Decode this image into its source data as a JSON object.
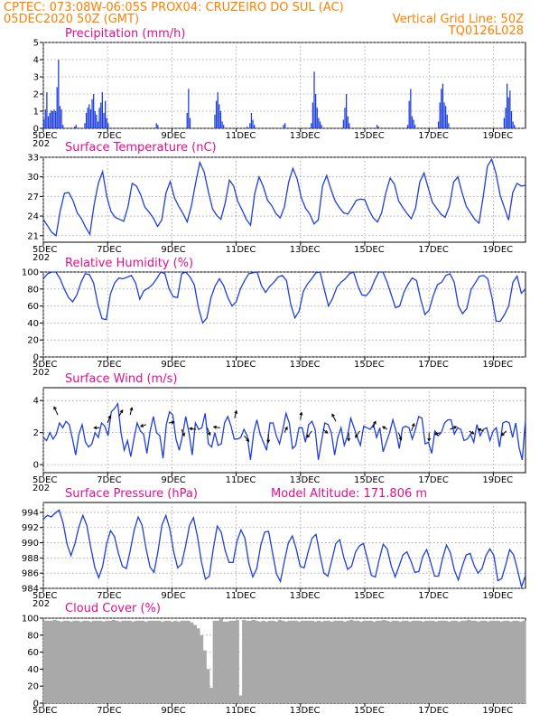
{
  "header": {
    "line1_left": "CPTEC:   073:08W-06:05S   PROX04: CRUZEIRO DO SUL (AC)",
    "line2_left": "05DEC2020 50Z (GMT)",
    "line2_right": "Vertical Grid Line: 50Z",
    "line3_right": "TQ0126L028"
  },
  "colors": {
    "header": "#ff8000",
    "title": "#e0108c",
    "series": "#1f3fdd",
    "cloud": "#a9a9a9",
    "grid": "#9a9a9a"
  },
  "x_axis": {
    "tick_labels": [
      "5DEC",
      "7DEC",
      "9DEC",
      "11DEC",
      "13DEC",
      "15DEC",
      "17DEC",
      "19DEC"
    ],
    "tick_days": [
      0,
      2,
      4,
      6,
      8,
      10,
      12,
      14
    ],
    "range_days": [
      0,
      15
    ],
    "year_stub": "202"
  },
  "chart_data": [
    {
      "id": "precip",
      "type": "bar",
      "title": "Precipitation (mm/h)",
      "ylim": [
        0,
        5
      ],
      "yticks": [
        0,
        1,
        2,
        3,
        4,
        5
      ],
      "days": [
        [
          0.55,
          1.1,
          2.1,
          0.7,
          0.9,
          1.05,
          1.0,
          1.1,
          1.0,
          2.4,
          4.0,
          1.3,
          1.1,
          0.2,
          0,
          0,
          0,
          0,
          0,
          0,
          0,
          0.1
        ],
        [
          0.2,
          0,
          0,
          0,
          0,
          0,
          0.3,
          0.9,
          1.2,
          1.4,
          1.1,
          1.7,
          2.0,
          1.0,
          0.8,
          0.4,
          1.2,
          1.5,
          2.1,
          0.9,
          1.6,
          0.6
        ],
        [
          0.3,
          0,
          0,
          0,
          0,
          0,
          0,
          0,
          0,
          0,
          0,
          0,
          0,
          0,
          0,
          0,
          0,
          0,
          0,
          0,
          0,
          0
        ],
        [
          0,
          0,
          0,
          0,
          0,
          0,
          0,
          0,
          0,
          0,
          0,
          0.3,
          0.2,
          0,
          0,
          0,
          0,
          0,
          0,
          0,
          0,
          0
        ],
        [
          0,
          0,
          0,
          0,
          0,
          0,
          0,
          0,
          0,
          0,
          0.9,
          2.3,
          0.6,
          0,
          0,
          0,
          0,
          0,
          0,
          0,
          0,
          0
        ],
        [
          0,
          0,
          0,
          0,
          0,
          0,
          0,
          0.8,
          1.6,
          2.1,
          1.4,
          1.0,
          0.4,
          0.2,
          0,
          0,
          0,
          0,
          0,
          0,
          0,
          0
        ],
        [
          0,
          0,
          0,
          0,
          0,
          0,
          0,
          0.1,
          0,
          0.3,
          0.9,
          0.5,
          0.2,
          0,
          0,
          0,
          0,
          0,
          0,
          0,
          0,
          0
        ],
        [
          0,
          0,
          0,
          0,
          0,
          0,
          0,
          0,
          0,
          0,
          0.2,
          0.3,
          0,
          0,
          0,
          0,
          0,
          0,
          0,
          0,
          0,
          0
        ],
        [
          0,
          0,
          0,
          0,
          0,
          0,
          0,
          0.3,
          1.5,
          3.3,
          2.0,
          1.2,
          0.6,
          0.4,
          0.2,
          0,
          0,
          0,
          0,
          0,
          0,
          0
        ],
        [
          0,
          0,
          0,
          0,
          0,
          0,
          0,
          0.5,
          1.2,
          2.0,
          0.7,
          0.3,
          0,
          0,
          0,
          0,
          0,
          0,
          0,
          0,
          0,
          0
        ],
        [
          0,
          0,
          0,
          0,
          0,
          0,
          0,
          0,
          0.2,
          0.1,
          0,
          0,
          0,
          0,
          0,
          0,
          0,
          0,
          0,
          0,
          0,
          0
        ],
        [
          0,
          0,
          0,
          0,
          0,
          0,
          0,
          0.2,
          1.6,
          2.3,
          0.7,
          0.5,
          0.2,
          0,
          0,
          0,
          0,
          0,
          0,
          0,
          0,
          0
        ],
        [
          0,
          0,
          0,
          0,
          0,
          0,
          0.4,
          1.5,
          2.3,
          2.6,
          1.5,
          1.3,
          0.8,
          0.3,
          0,
          0,
          0,
          0,
          0,
          0,
          0,
          0
        ],
        [
          0,
          0,
          0,
          0,
          0,
          0,
          0,
          0,
          0,
          0,
          0,
          0,
          0,
          0,
          0,
          0,
          0,
          0,
          0,
          0,
          0,
          0
        ],
        [
          0,
          0,
          0,
          0,
          0,
          0,
          0,
          0.6,
          1.2,
          2.6,
          1.8,
          2.2,
          1.0,
          0.4,
          0.2,
          0,
          0,
          0,
          0,
          0,
          0,
          0
        ]
      ]
    },
    {
      "id": "temp",
      "type": "line",
      "title": "Surface Temperature (nC)",
      "ylim": [
        20,
        33
      ],
      "yticks": [
        21,
        24,
        27,
        30,
        33
      ],
      "values": [
        23.5,
        22.5,
        21.5,
        21.0,
        24.8,
        27.5,
        27.6,
        26.4,
        24.5,
        23.6,
        22.3,
        21.2,
        25.7,
        29.0,
        30.8,
        27.0,
        24.7,
        23.8,
        23.5,
        23.2,
        25.4,
        29.0,
        28.6,
        27.3,
        25.4,
        24.6,
        23.7,
        22.4,
        23.4,
        27.5,
        29.3,
        26.8,
        25.5,
        24.4,
        23.1,
        25.5,
        29.0,
        32.2,
        30.8,
        27.8,
        25.1,
        24.1,
        23.5,
        26.0,
        29.5,
        28.6,
        26.2,
        24.9,
        23.5,
        22.6,
        27.5,
        30.0,
        28.5,
        26.4,
        25.6,
        24.4,
        23.7,
        25.4,
        29.2,
        31.3,
        29.7,
        26.8,
        25.2,
        24.3,
        22.8,
        23.4,
        28.6,
        30.2,
        28.1,
        26.3,
        25.3,
        24.5,
        24.3,
        25.3,
        26.4,
        26.6,
        26.5,
        24.9,
        23.7,
        23.1,
        24.5,
        27.6,
        29.8,
        28.9,
        26.3,
        25.3,
        24.4,
        23.6,
        25.2,
        29.2,
        30.6,
        28.3,
        26.1,
        25.2,
        24.3,
        23.8,
        25.5,
        29.2,
        30.0,
        27.6,
        25.5,
        24.5,
        23.5,
        22.9,
        27.0,
        31.6,
        32.7,
        30.6,
        27.2,
        25.3,
        23.4,
        27.6,
        29.0,
        28.6,
        28.7
      ]
    },
    {
      "id": "rh",
      "type": "line",
      "title": "Relative Humidity (%)",
      "ylim": [
        0,
        100
      ],
      "yticks": [
        0,
        20,
        40,
        60,
        80,
        100
      ],
      "values": [
        92,
        98,
        100,
        100,
        92,
        80,
        70,
        65,
        73,
        88,
        98,
        97,
        87,
        62,
        45,
        44,
        74,
        87,
        93,
        92,
        94,
        96,
        87,
        68,
        78,
        81,
        85,
        92,
        100,
        98,
        80,
        71,
        70,
        98,
        100,
        94,
        85,
        58,
        40,
        46,
        70,
        84,
        92,
        84,
        70,
        60,
        65,
        80,
        90,
        98,
        99,
        100,
        84,
        76,
        83,
        88,
        94,
        96,
        90,
        62,
        46,
        54,
        77,
        86,
        92,
        99,
        100,
        80,
        60,
        69,
        82,
        88,
        92,
        98,
        100,
        84,
        73,
        72,
        78,
        90,
        100,
        100,
        88,
        73,
        58,
        60,
        76,
        86,
        93,
        90,
        68,
        50,
        55,
        72,
        85,
        88,
        96,
        98,
        88,
        60,
        51,
        57,
        79,
        87,
        95,
        96,
        92,
        70,
        42,
        42,
        50,
        60,
        88,
        95,
        75,
        80
      ]
    },
    {
      "id": "wind",
      "type": "line",
      "title": "Surface Wind (m/s)",
      "ylim": [
        -0.5,
        4.8
      ],
      "yticks": [
        0,
        2,
        4
      ],
      "values": [
        1.7,
        1.5,
        2.0,
        1.6,
        1.9,
        2.6,
        2.3,
        2.7,
        2.5,
        1.6,
        0.6,
        1.9,
        2.5,
        1.4,
        1.1,
        1.3,
        2.0,
        1.7,
        2.6,
        2.4,
        1.8,
        3.3,
        3.5,
        3.8,
        2.0,
        0.9,
        1.5,
        0.5,
        1.6,
        2.6,
        2.1,
        1.9,
        0.7,
        2.1,
        3.0,
        2.0,
        1.8,
        0.4,
        2.5,
        3.3,
        3.1,
        1.6,
        0.9,
        1.8,
        3.0,
        2.0,
        0.6,
        2.6,
        2.2,
        2.3,
        3.2,
        1.3,
        1.1,
        2.0,
        1.2,
        1.3,
        2.6,
        3.0,
        2.4,
        1.6,
        1.6,
        1.7,
        2.2,
        1.8,
        0.3,
        2.0,
        2.8,
        1.9,
        1.4,
        0.9,
        2.6,
        2.6,
        1.8,
        1.3,
        2.2,
        3.2,
        2.6,
        1.0,
        1.2,
        2.3,
        2.3,
        1.4,
        2.5,
        2.7,
        2.2,
        0.3,
        1.5,
        2.6,
        2.5,
        2.0,
        0.6,
        1.7,
        2.3,
        1.2,
        1.8,
        2.9,
        2.3,
        1.7,
        1.2,
        2.4,
        2.3,
        2.2,
        2.5,
        1.7,
        2.3,
        0.8,
        1.4,
        2.0,
        2.8,
        2.1,
        1.0,
        2.3,
        2.4,
        2.3,
        1.6,
        2.2,
        3.0,
        2.9,
        1.3,
        1.4,
        0.7,
        2.1,
        1.8,
        2.0,
        2.6,
        2.8,
        2.8,
        1.9,
        2.3,
        2.2,
        1.5,
        1.6,
        1.9,
        1.4,
        2.5,
        1.8,
        2.2,
        2.3,
        1.5,
        2.1,
        2.3,
        1.1,
        2.6,
        2.7,
        2.6,
        1.7,
        2.6,
        1.1,
        0.3,
        2.8
      ],
      "arrows": [
        {
          "d": 0.45,
          "y": 3.1,
          "dx": -4,
          "dy": -9
        },
        {
          "d": 1.75,
          "y": 2.3,
          "dx": -6,
          "dy": 0
        },
        {
          "d": 2.0,
          "y": 2.6,
          "dx": 3,
          "dy": -8
        },
        {
          "d": 2.35,
          "y": 3.0,
          "dx": 4,
          "dy": -7
        },
        {
          "d": 2.7,
          "y": 3.1,
          "dx": 2,
          "dy": -8
        },
        {
          "d": 3.2,
          "y": 2.5,
          "dx": -6,
          "dy": 2
        },
        {
          "d": 3.9,
          "y": 2.6,
          "dx": 6,
          "dy": -1
        },
        {
          "d": 4.3,
          "y": 2.2,
          "dx": 3,
          "dy": 7
        },
        {
          "d": 4.75,
          "y": 2.2,
          "dx": -7,
          "dy": -1
        },
        {
          "d": 5.1,
          "y": 2.3,
          "dx": 3,
          "dy": 8
        },
        {
          "d": 5.5,
          "y": 2.3,
          "dx": -7,
          "dy": -1
        },
        {
          "d": 5.95,
          "y": 2.9,
          "dx": 2,
          "dy": -8
        },
        {
          "d": 6.25,
          "y": 1.8,
          "dx": 5,
          "dy": 6
        },
        {
          "d": 7.0,
          "y": 1.9,
          "dx": 0,
          "dy": 9
        },
        {
          "d": 7.5,
          "y": 2.0,
          "dx": 3,
          "dy": -6
        },
        {
          "d": 8.0,
          "y": 2.8,
          "dx": 1,
          "dy": -8
        },
        {
          "d": 8.35,
          "y": 2.1,
          "dx": -5,
          "dy": 7
        },
        {
          "d": 8.7,
          "y": 2.2,
          "dx": 5,
          "dy": 4
        },
        {
          "d": 9.1,
          "y": 2.7,
          "dx": -4,
          "dy": -8
        },
        {
          "d": 9.5,
          "y": 2.0,
          "dx": 0,
          "dy": 9
        },
        {
          "d": 9.85,
          "y": 2.1,
          "dx": -5,
          "dy": 7
        },
        {
          "d": 10.25,
          "y": 2.3,
          "dx": 3,
          "dy": -7
        },
        {
          "d": 10.7,
          "y": 2.2,
          "dx": -5,
          "dy": -3
        },
        {
          "d": 11.05,
          "y": 2.0,
          "dx": 3,
          "dy": 8
        },
        {
          "d": 11.45,
          "y": 2.1,
          "dx": 3,
          "dy": -8
        },
        {
          "d": 12.0,
          "y": 2.0,
          "dx": 0,
          "dy": 9
        },
        {
          "d": 12.35,
          "y": 2.0,
          "dx": -6,
          "dy": 2
        },
        {
          "d": 12.65,
          "y": 2.2,
          "dx": 7,
          "dy": -3
        },
        {
          "d": 13.25,
          "y": 2.1,
          "dx": 5,
          "dy": 3
        },
        {
          "d": 13.7,
          "y": 2.1,
          "dx": -6,
          "dy": -2
        },
        {
          "d": 14.4,
          "y": 2.1,
          "dx": -5,
          "dy": 5
        }
      ]
    },
    {
      "id": "pres",
      "type": "line",
      "title": "Surface Pressure (hPa)",
      "extra": "Model Altitude: 171.806 m",
      "ylim": [
        984,
        995.3
      ],
      "yticks": [
        984,
        986,
        988,
        990,
        992,
        994
      ],
      "values": [
        993.1,
        993.6,
        993.4,
        993.9,
        994.3,
        992.6,
        989.8,
        988.3,
        989.9,
        992.1,
        993.6,
        992.3,
        989.4,
        986.8,
        985.4,
        986.9,
        989.8,
        991.6,
        990.8,
        988.6,
        986.9,
        986.6,
        989.0,
        991.7,
        993.4,
        992.3,
        989.2,
        986.8,
        986.1,
        988.8,
        992.3,
        993.6,
        991.8,
        988.8,
        986.7,
        987.2,
        989.6,
        992.3,
        993.3,
        990.8,
        987.5,
        985.2,
        985.6,
        989.2,
        992.2,
        991.4,
        989.0,
        987.4,
        987.4,
        990.2,
        991.7,
        990.6,
        987.3,
        985.5,
        986.6,
        989.6,
        991.4,
        991.5,
        988.6,
        985.9,
        984.9,
        987.6,
        990.0,
        990.9,
        989.2,
        986.9,
        986.7,
        988.8,
        990.6,
        991.1,
        988.4,
        986.0,
        985.6,
        987.7,
        989.9,
        990.4,
        988.1,
        986.5,
        986.9,
        988.8,
        989.6,
        989.9,
        987.9,
        985.7,
        985.5,
        987.8,
        989.8,
        989.2,
        987.0,
        985.5,
        986.9,
        988.4,
        988.8,
        987.6,
        986.1,
        986.2,
        988.2,
        989.1,
        987.4,
        985.6,
        985.6,
        987.9,
        989.7,
        988.7,
        986.4,
        985.1,
        986.9,
        988.4,
        988.6,
        987.0,
        986.0,
        986.6,
        988.3,
        989.2,
        988.3,
        985.0,
        985.3,
        987.1,
        989.1,
        988.4,
        986.4,
        984.2,
        985.7
      ]
    },
    {
      "id": "cloud",
      "type": "bar",
      "title": "Cloud Cover (%)",
      "ylim": [
        0,
        100
      ],
      "yticks": [
        0,
        20,
        40,
        60,
        80,
        100
      ],
      "values": [
        97,
        97,
        97,
        98,
        97,
        96,
        97,
        97,
        96,
        97,
        97,
        96,
        97,
        97,
        96,
        97,
        97,
        97,
        96,
        97,
        97,
        98,
        97,
        96,
        97,
        97,
        97,
        96,
        97,
        97,
        97,
        96,
        97,
        97,
        97,
        97,
        96,
        97,
        97,
        96,
        97,
        96,
        97,
        97,
        97,
        95,
        92,
        88,
        80,
        62,
        40,
        18,
        97,
        97,
        99,
        96,
        96,
        97,
        97,
        98,
        9,
        98,
        97,
        97,
        98,
        97,
        96,
        97,
        96,
        97,
        97,
        96,
        98,
        97,
        96,
        97,
        97,
        97,
        96,
        97,
        97,
        97,
        97,
        96,
        97,
        96,
        97,
        97,
        96,
        97,
        97,
        97,
        96,
        97,
        98,
        97,
        97,
        96,
        97,
        97,
        97,
        96,
        97,
        97,
        98,
        97,
        96,
        97,
        97,
        96,
        97,
        97,
        96,
        97,
        97,
        97,
        96,
        97,
        97,
        97,
        96,
        97,
        97,
        97,
        96,
        97,
        97,
        96,
        97,
        97,
        98,
        97,
        97,
        96,
        97,
        97,
        96,
        97,
        97,
        97,
        96,
        97,
        97,
        96,
        97,
        97,
        96,
        97
      ]
    }
  ]
}
